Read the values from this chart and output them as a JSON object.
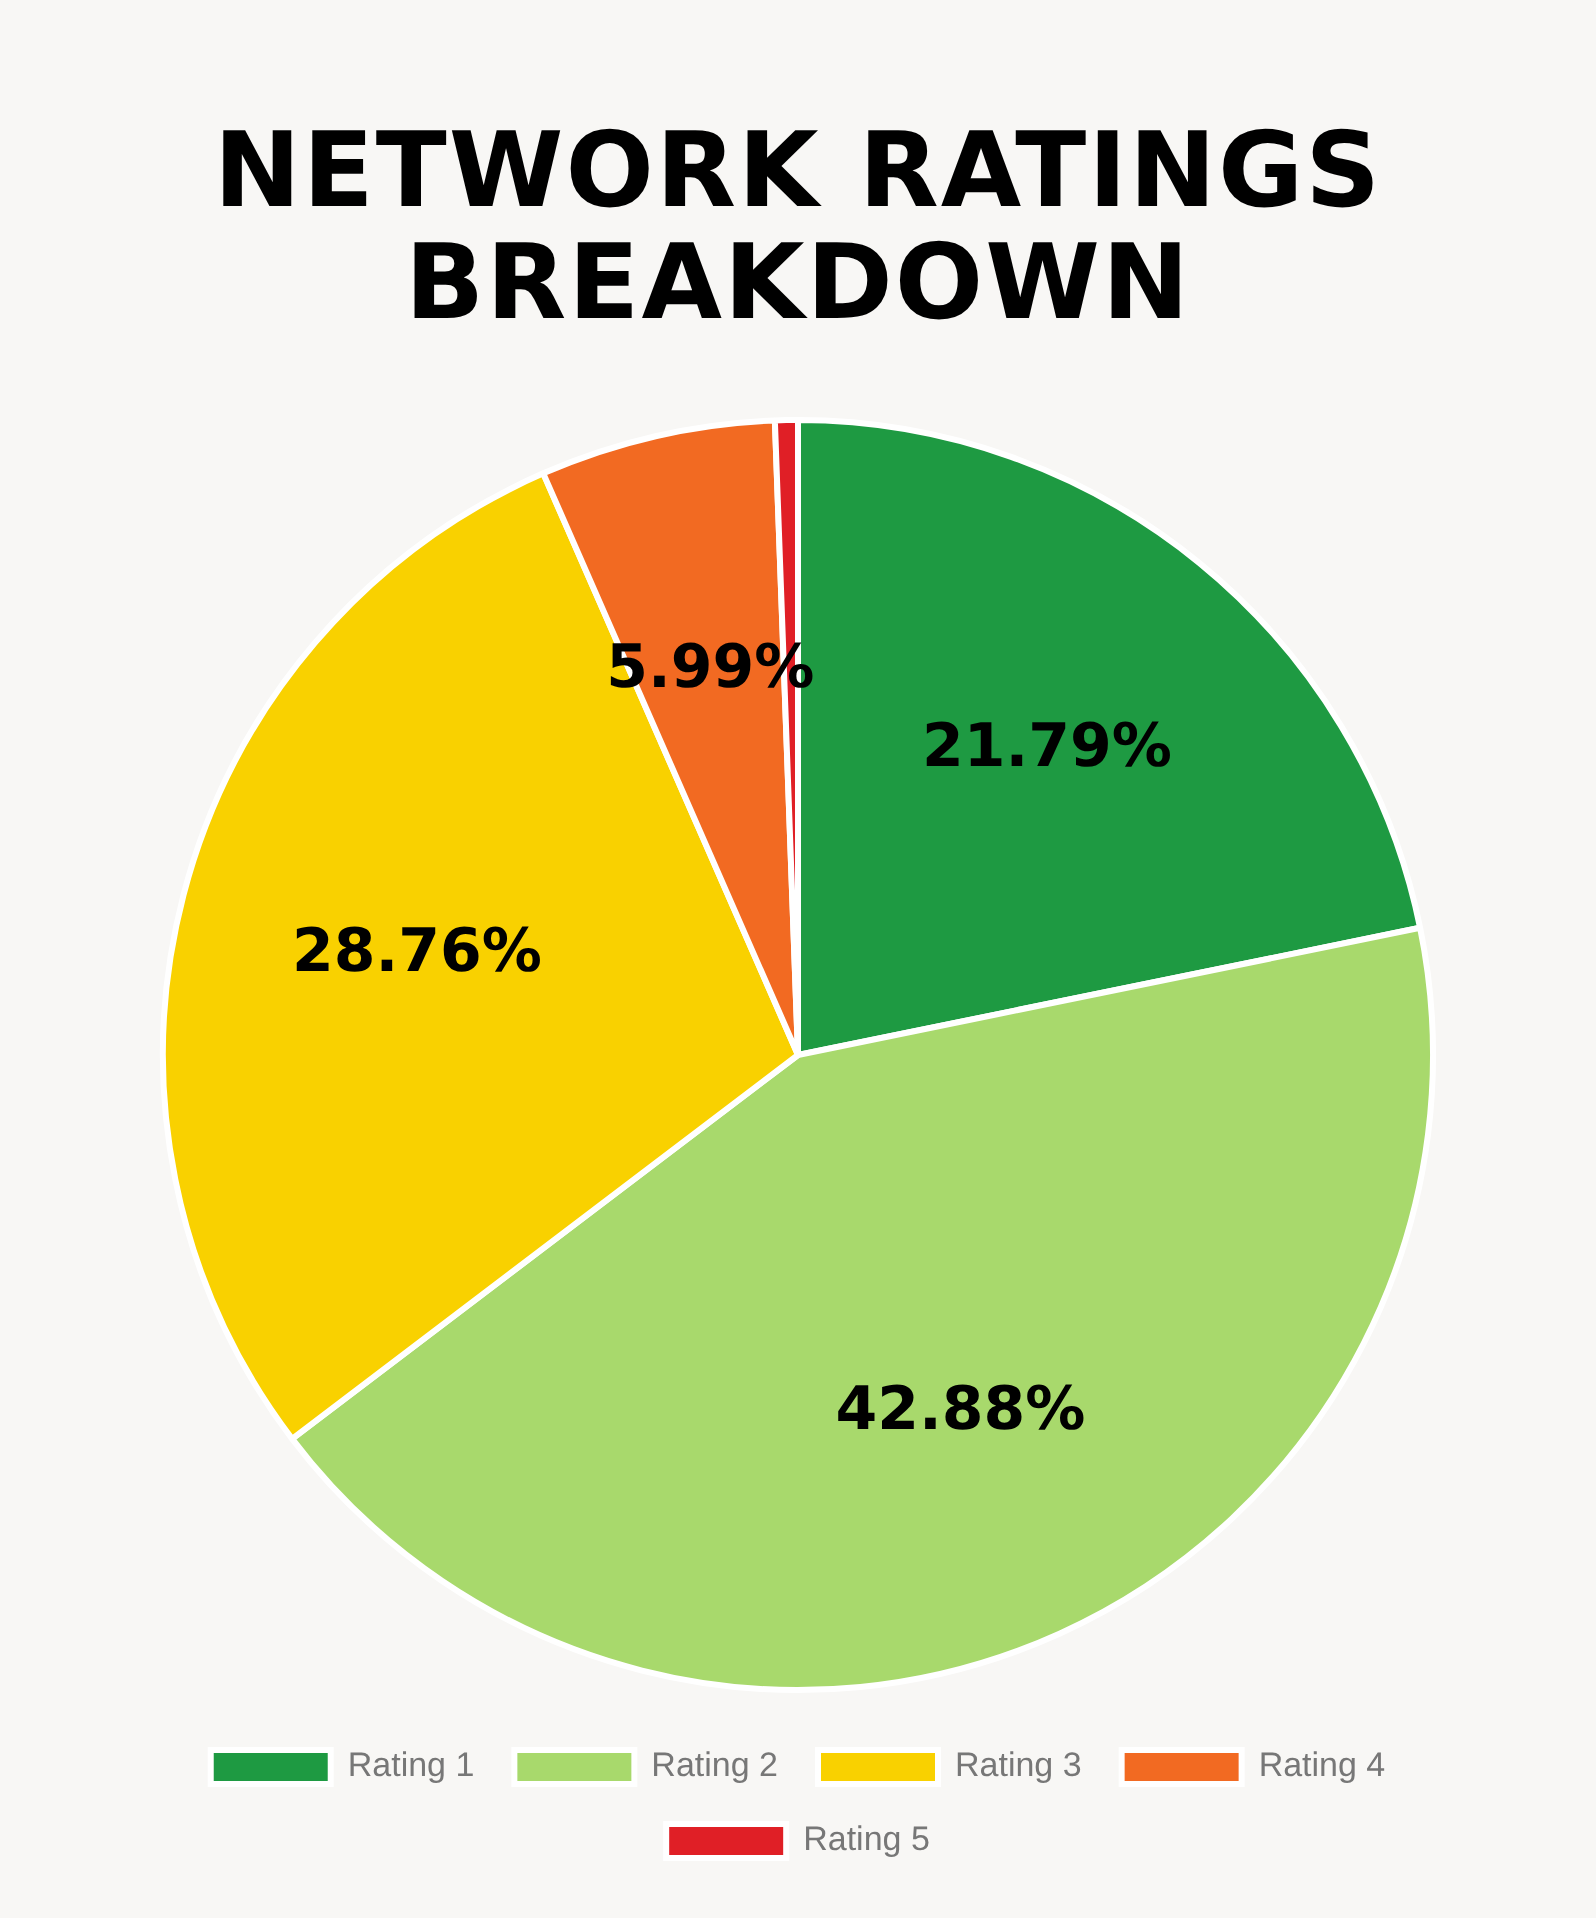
{
  "chart_data": {
    "type": "pie",
    "title": "NETWORK RATINGS BREAKDOWN",
    "categories": [
      "Rating 1",
      "Rating 2",
      "Rating 3",
      "Rating 4",
      "Rating 5"
    ],
    "values": [
      21.79,
      42.88,
      28.76,
      5.99,
      0.58
    ],
    "colors": [
      "#1e9a42",
      "#a8d96c",
      "#f9d100",
      "#f26a22",
      "#e01f26"
    ],
    "value_labels": [
      "21.79%",
      "42.88%",
      "28.76%",
      "5.99%",
      null
    ],
    "legend": "bottom"
  }
}
